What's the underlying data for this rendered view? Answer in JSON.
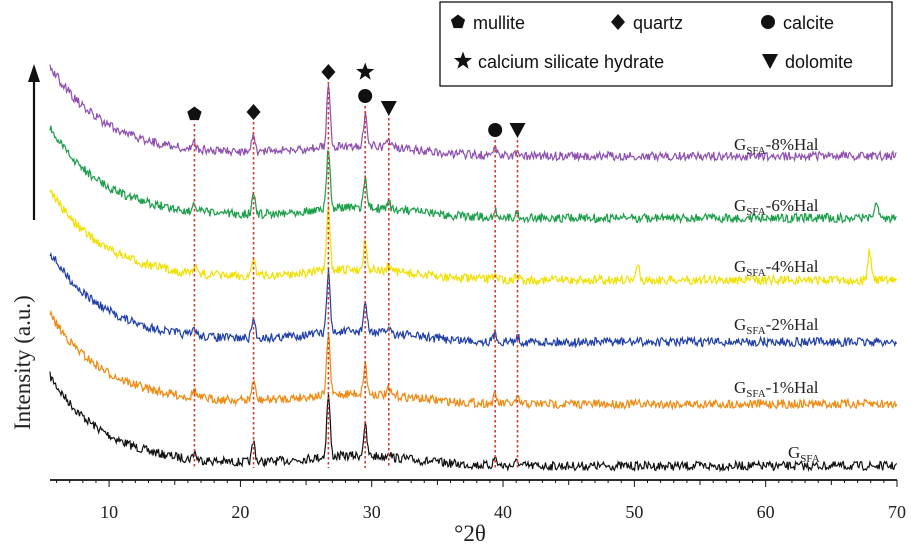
{
  "chart_data": {
    "type": "line",
    "title": "",
    "xlabel": "°2θ",
    "ylabel": "Intensity (a.u.)",
    "xlim": [
      5.5,
      70
    ],
    "xticks": [
      10,
      20,
      30,
      40,
      50,
      60,
      70
    ],
    "y_tick_labels": false,
    "grid": false,
    "legend_position": "top-right",
    "legend": [
      {
        "marker": "pentagon",
        "label": "mullite"
      },
      {
        "marker": "diamond",
        "label": "quartz"
      },
      {
        "marker": "circle",
        "label": "calcite"
      },
      {
        "marker": "star",
        "label": "calcium silicate hydrate"
      },
      {
        "marker": "triangle-down",
        "label": "dolomite"
      }
    ],
    "reference_lines": [
      {
        "x": 16.5,
        "phase": "mullite",
        "marker": "pentagon"
      },
      {
        "x": 21.0,
        "phase": "quartz",
        "marker": "diamond"
      },
      {
        "x": 26.7,
        "phase": "quartz",
        "marker": "diamond"
      },
      {
        "x": 29.5,
        "phase": "calcite",
        "marker": "circle",
        "marker2": "star"
      },
      {
        "x": 31.3,
        "phase": "dolomite",
        "marker": "triangle-down"
      },
      {
        "x": 39.4,
        "phase": "calcite",
        "marker": "circle"
      },
      {
        "x": 41.1,
        "phase": "dolomite",
        "marker": "triangle-down"
      }
    ],
    "series": [
      {
        "main": "G",
        "sub": "SFA",
        "suffix": "",
        "color": "#111111",
        "baseline": 0.0,
        "extra_peaks": []
      },
      {
        "main": "G",
        "sub": "SFA",
        "suffix": "-1%Hal",
        "color": "#ee8a10",
        "baseline": 1.0,
        "extra_peaks": []
      },
      {
        "main": "G",
        "sub": "SFA",
        "suffix": "-2%Hal",
        "color": "#2040a8",
        "baseline": 2.0,
        "extra_peaks": []
      },
      {
        "main": "G",
        "sub": "SFA",
        "suffix": "-4%Hal",
        "color": "#f2e000",
        "baseline": 3.0,
        "extra_peaks": [
          [
            50.3,
            0.35
          ],
          [
            67.9,
            0.7
          ]
        ]
      },
      {
        "main": "G",
        "sub": "SFA",
        "suffix": "-6%Hal",
        "color": "#1a9e48",
        "baseline": 4.0,
        "extra_peaks": [
          [
            68.4,
            0.45
          ]
        ]
      },
      {
        "main": "G",
        "sub": "SFA",
        "suffix": "-8%Hal",
        "color": "#8e4fb0",
        "baseline": 5.0,
        "extra_peaks": []
      }
    ]
  }
}
